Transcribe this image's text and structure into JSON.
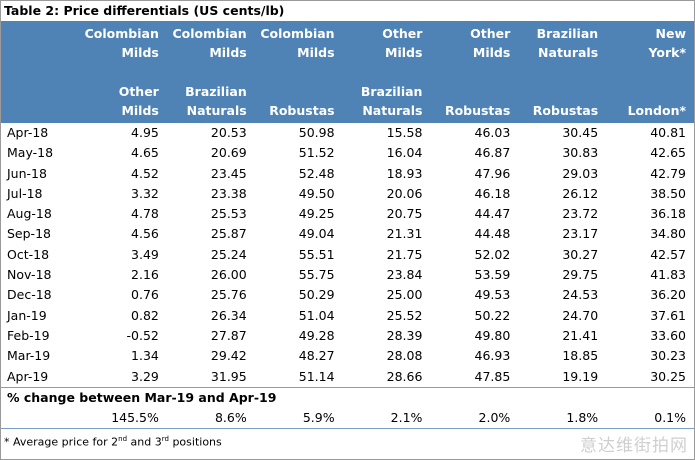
{
  "title": "Table 2:  Price differentials (US cents/lb)",
  "header_top": [
    "",
    "Colombian\nMilds",
    "Colombian\nMilds",
    "Colombian\nMilds",
    "Other\nMilds",
    "Other Milds",
    "Brazilian\nNaturals",
    "New\nYork*"
  ],
  "header_bottom": [
    "",
    "Other\nMilds",
    "Brazilian\nNaturals",
    "Robustas",
    "Brazilian\nNaturals",
    "Robustas",
    "Robustas",
    "London*"
  ],
  "rows": [
    [
      "Apr-18",
      "4.95",
      "20.53",
      "50.98",
      "15.58",
      "46.03",
      "30.45",
      "40.81"
    ],
    [
      "May-18",
      "4.65",
      "20.69",
      "51.52",
      "16.04",
      "46.87",
      "30.83",
      "42.65"
    ],
    [
      "Jun-18",
      "4.52",
      "23.45",
      "52.48",
      "18.93",
      "47.96",
      "29.03",
      "42.79"
    ],
    [
      "Jul-18",
      "3.32",
      "23.38",
      "49.50",
      "20.06",
      "46.18",
      "26.12",
      "38.50"
    ],
    [
      "Aug-18",
      "4.78",
      "25.53",
      "49.25",
      "20.75",
      "44.47",
      "23.72",
      "36.18"
    ],
    [
      "Sep-18",
      "4.56",
      "25.87",
      "49.04",
      "21.31",
      "44.48",
      "23.17",
      "34.80"
    ],
    [
      "Oct-18",
      "3.49",
      "25.24",
      "55.51",
      "21.75",
      "52.02",
      "30.27",
      "42.57"
    ],
    [
      "Nov-18",
      "2.16",
      "26.00",
      "55.75",
      "23.84",
      "53.59",
      "29.75",
      "41.83"
    ],
    [
      "Dec-18",
      "0.76",
      "25.76",
      "50.29",
      "25.00",
      "49.53",
      "24.53",
      "36.20"
    ],
    [
      "Jan-19",
      "0.82",
      "26.34",
      "51.04",
      "25.52",
      "50.22",
      "24.70",
      "37.61"
    ],
    [
      "Feb-19",
      "-0.52",
      "27.87",
      "49.28",
      "28.39",
      "49.80",
      "21.41",
      "33.60"
    ],
    [
      "Mar-19",
      "1.34",
      "29.42",
      "48.27",
      "28.08",
      "46.93",
      "18.85",
      "30.23"
    ],
    [
      "Apr-19",
      "3.29",
      "31.95",
      "51.14",
      "28.66",
      "47.85",
      "19.19",
      "30.25"
    ]
  ],
  "change_label": "% change between Mar-19 and Apr-19",
  "change_values": [
    "145.5%",
    "8.6%",
    "5.9%",
    "2.1%",
    "2.0%",
    "1.8%",
    "0.1%"
  ],
  "footnote": {
    "pre": "* Average price for 2",
    "sup1": "nd",
    "mid": " and 3",
    "sup2": "rd",
    "post": " positions"
  },
  "watermark": "意达维街拍网"
}
